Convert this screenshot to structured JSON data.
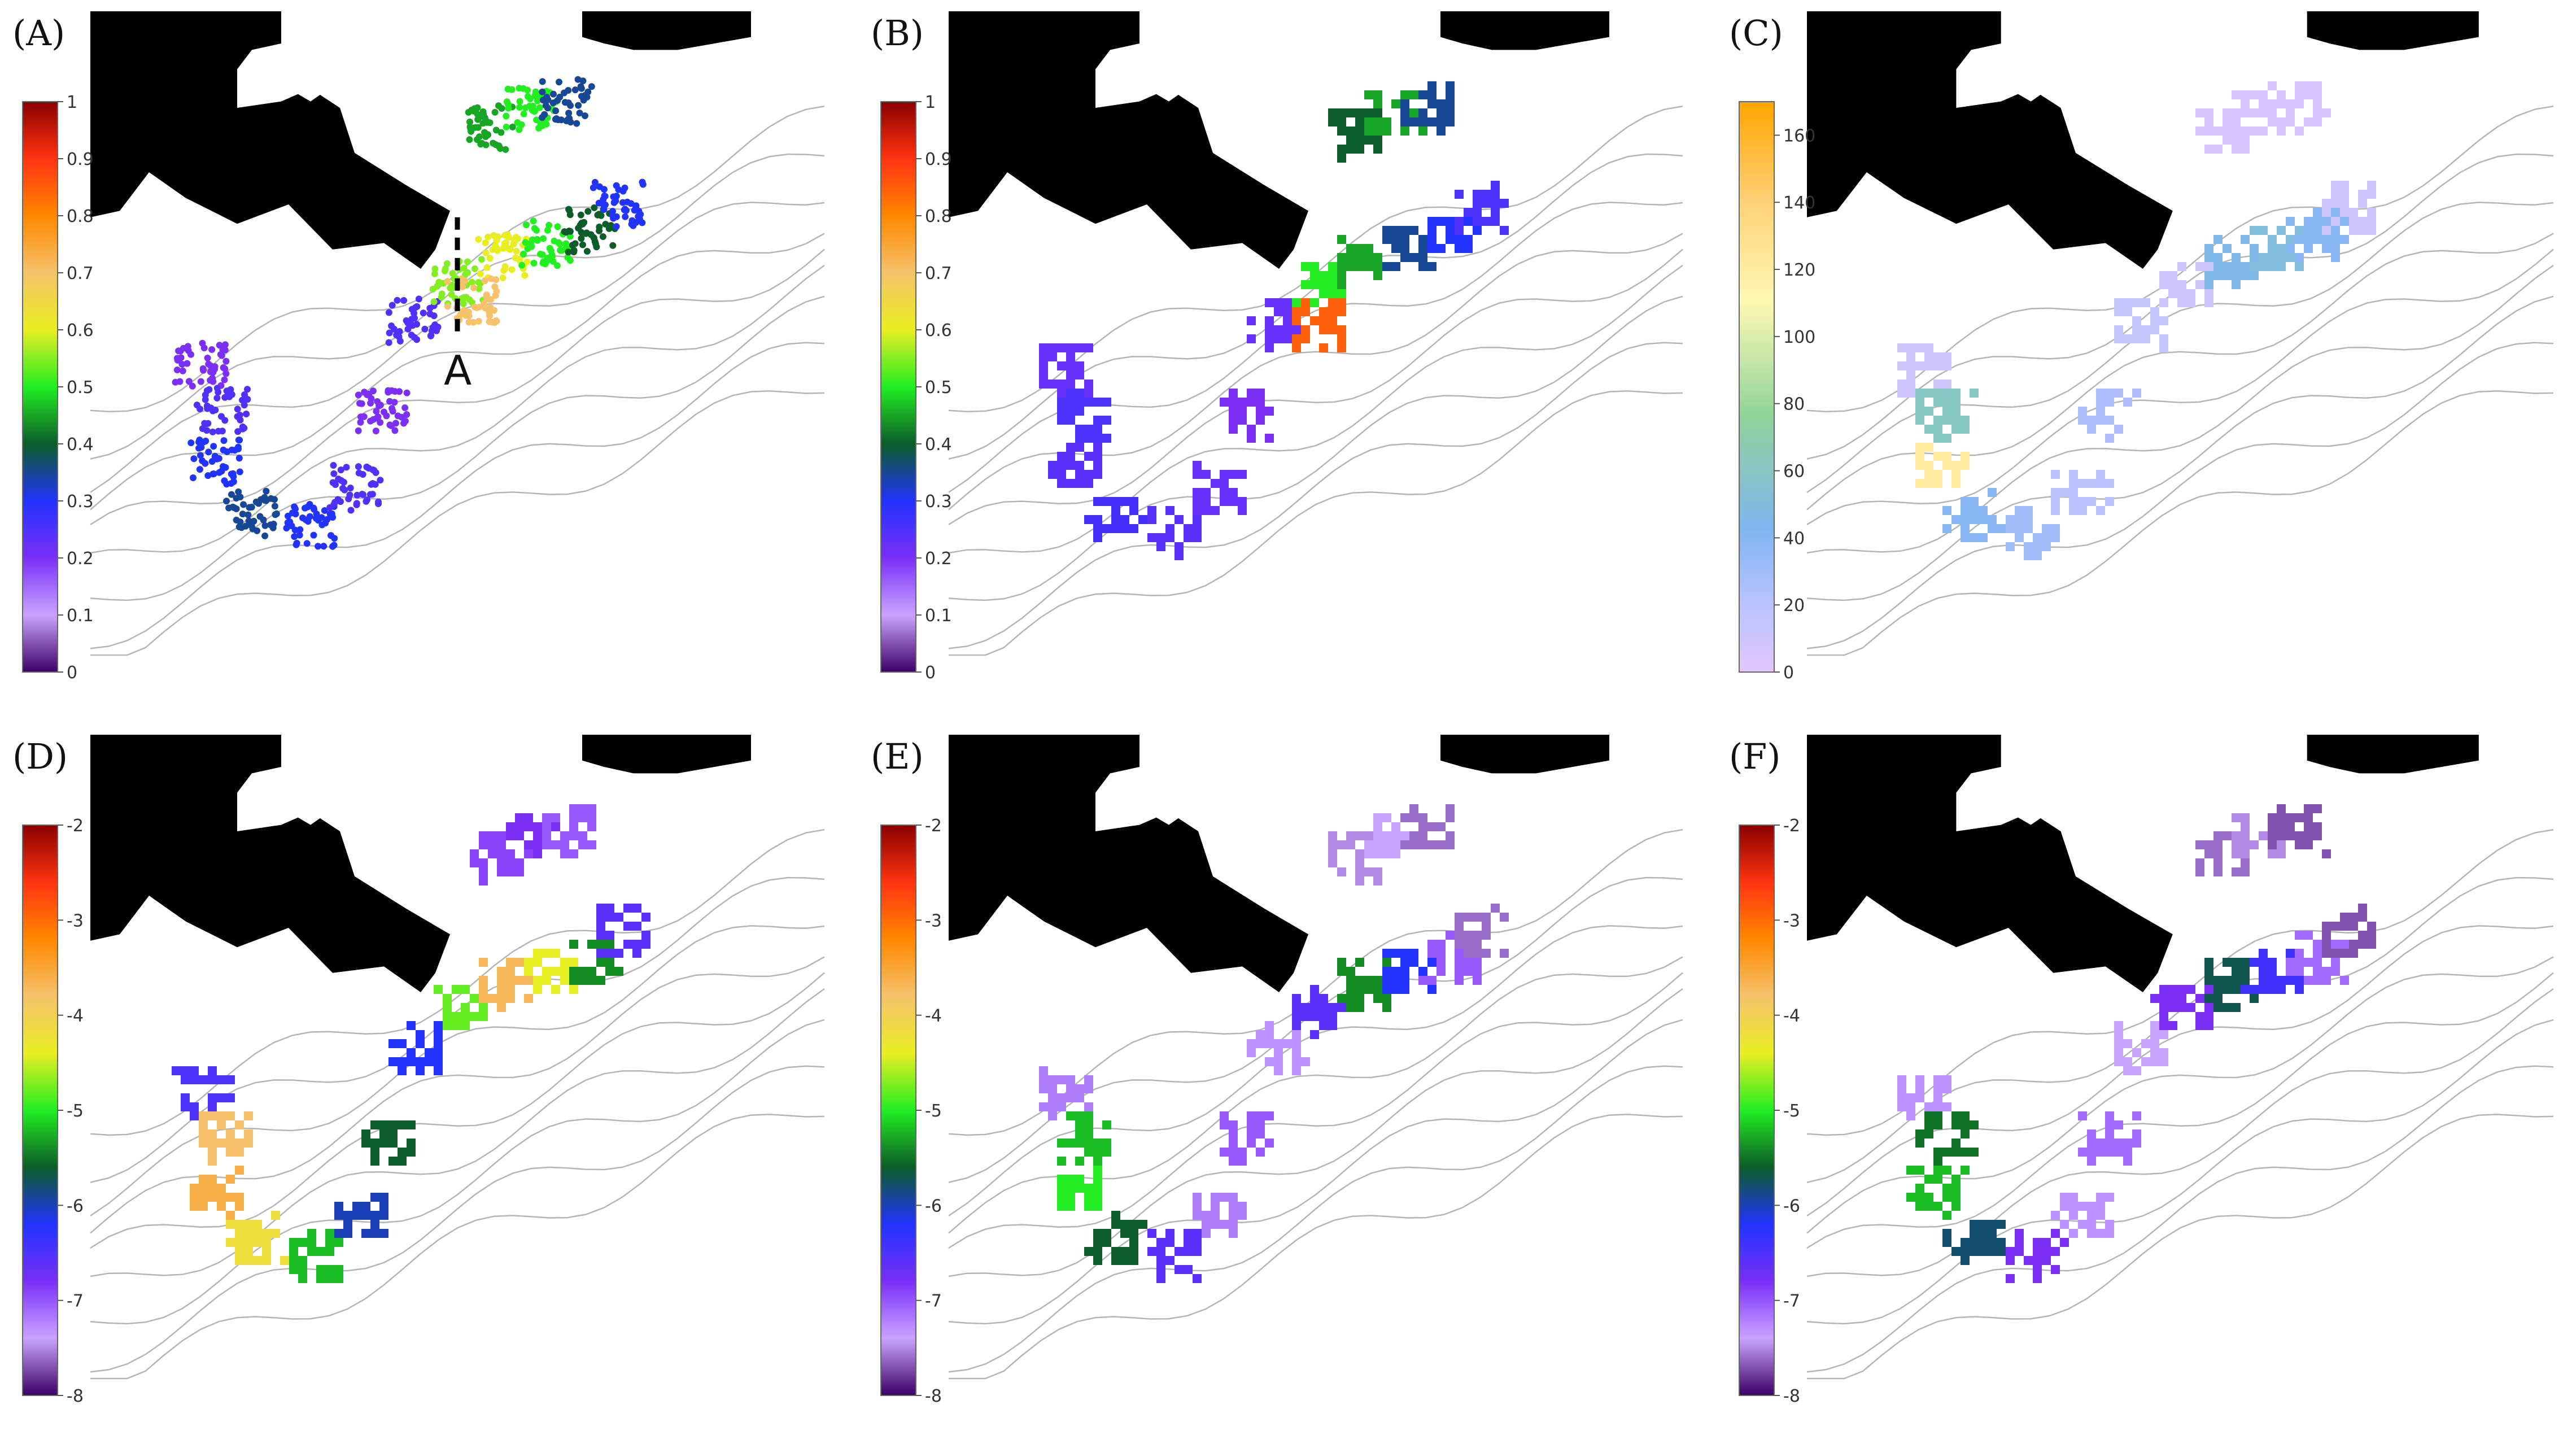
{
  "chart_data": [
    {
      "panel": "(A)",
      "type": "heatmap",
      "title": "",
      "colorbar": {
        "ticks": [
          "0",
          "0.1",
          "0.2",
          "0.3",
          "0.4",
          "0.5",
          "0.6",
          "0.7",
          "0.8",
          "0.9",
          "1"
        ],
        "range": [
          0,
          1
        ],
        "palette": "rainbow"
      },
      "annotation": "A",
      "render": "scatter",
      "cells": [
        {
          "x": 0.15,
          "y": 0.55,
          "v": 0.2
        },
        {
          "x": 0.18,
          "y": 0.62,
          "v": 0.25
        },
        {
          "x": 0.17,
          "y": 0.7,
          "v": 0.3
        },
        {
          "x": 0.22,
          "y": 0.78,
          "v": 0.35
        },
        {
          "x": 0.3,
          "y": 0.8,
          "v": 0.3
        },
        {
          "x": 0.36,
          "y": 0.74,
          "v": 0.25
        },
        {
          "x": 0.4,
          "y": 0.62,
          "v": 0.2
        },
        {
          "x": 0.44,
          "y": 0.48,
          "v": 0.25
        },
        {
          "x": 0.5,
          "y": 0.42,
          "v": 0.55
        },
        {
          "x": 0.56,
          "y": 0.38,
          "v": 0.6
        },
        {
          "x": 0.62,
          "y": 0.36,
          "v": 0.5
        },
        {
          "x": 0.68,
          "y": 0.34,
          "v": 0.4
        },
        {
          "x": 0.72,
          "y": 0.3,
          "v": 0.3
        },
        {
          "x": 0.55,
          "y": 0.18,
          "v": 0.45
        },
        {
          "x": 0.6,
          "y": 0.15,
          "v": 0.5
        },
        {
          "x": 0.65,
          "y": 0.14,
          "v": 0.35
        },
        {
          "x": 0.52,
          "y": 0.45,
          "v": 0.7
        }
      ]
    },
    {
      "panel": "(B)",
      "type": "heatmap",
      "title": "",
      "colorbar": {
        "ticks": [
          "0",
          "0.1",
          "0.2",
          "0.3",
          "0.4",
          "0.5",
          "0.6",
          "0.7",
          "0.8",
          "0.9",
          "1"
        ],
        "range": [
          0,
          1
        ],
        "palette": "rainbow"
      },
      "render": "grid",
      "cells": [
        {
          "x": 0.15,
          "y": 0.55,
          "v": 0.22
        },
        {
          "x": 0.18,
          "y": 0.62,
          "v": 0.25
        },
        {
          "x": 0.17,
          "y": 0.7,
          "v": 0.24
        },
        {
          "x": 0.22,
          "y": 0.78,
          "v": 0.26
        },
        {
          "x": 0.3,
          "y": 0.8,
          "v": 0.24
        },
        {
          "x": 0.36,
          "y": 0.74,
          "v": 0.22
        },
        {
          "x": 0.4,
          "y": 0.62,
          "v": 0.2
        },
        {
          "x": 0.44,
          "y": 0.48,
          "v": 0.22
        },
        {
          "x": 0.5,
          "y": 0.42,
          "v": 0.5
        },
        {
          "x": 0.56,
          "y": 0.38,
          "v": 0.45
        },
        {
          "x": 0.62,
          "y": 0.36,
          "v": 0.35
        },
        {
          "x": 0.68,
          "y": 0.34,
          "v": 0.3
        },
        {
          "x": 0.72,
          "y": 0.3,
          "v": 0.25
        },
        {
          "x": 0.55,
          "y": 0.18,
          "v": 0.4
        },
        {
          "x": 0.6,
          "y": 0.15,
          "v": 0.45
        },
        {
          "x": 0.65,
          "y": 0.14,
          "v": 0.35
        },
        {
          "x": 0.5,
          "y": 0.48,
          "v": 0.85
        }
      ]
    },
    {
      "panel": "(C)",
      "type": "heatmap",
      "title": "",
      "colorbar": {
        "ticks": [
          "0",
          "20",
          "40",
          "60",
          "80",
          "100",
          "120",
          "140",
          "160"
        ],
        "range": [
          0,
          170
        ],
        "palette": "count"
      },
      "render": "grid",
      "cells": [
        {
          "x": 0.15,
          "y": 0.55,
          "v": 10
        },
        {
          "x": 0.18,
          "y": 0.62,
          "v": 60
        },
        {
          "x": 0.17,
          "y": 0.7,
          "v": 120
        },
        {
          "x": 0.22,
          "y": 0.78,
          "v": 40
        },
        {
          "x": 0.3,
          "y": 0.8,
          "v": 30
        },
        {
          "x": 0.36,
          "y": 0.74,
          "v": 20
        },
        {
          "x": 0.4,
          "y": 0.62,
          "v": 25
        },
        {
          "x": 0.44,
          "y": 0.48,
          "v": 15
        },
        {
          "x": 0.5,
          "y": 0.42,
          "v": 10
        },
        {
          "x": 0.56,
          "y": 0.38,
          "v": 45
        },
        {
          "x": 0.62,
          "y": 0.36,
          "v": 50
        },
        {
          "x": 0.68,
          "y": 0.34,
          "v": 40
        },
        {
          "x": 0.72,
          "y": 0.3,
          "v": 10
        },
        {
          "x": 0.55,
          "y": 0.18,
          "v": 5
        },
        {
          "x": 0.6,
          "y": 0.15,
          "v": 5
        },
        {
          "x": 0.65,
          "y": 0.14,
          "v": 5
        }
      ]
    },
    {
      "panel": "(D)",
      "type": "heatmap",
      "title": "",
      "colorbar": {
        "ticks": [
          "-8",
          "-7",
          "-6",
          "-5",
          "-4",
          "-3",
          "-2"
        ],
        "range": [
          -8,
          -2
        ],
        "palette": "rainbow"
      },
      "render": "grid",
      "cells": [
        {
          "x": 0.15,
          "y": 0.55,
          "v": -6.5
        },
        {
          "x": 0.18,
          "y": 0.62,
          "v": -3.8
        },
        {
          "x": 0.17,
          "y": 0.7,
          "v": -3.6
        },
        {
          "x": 0.22,
          "y": 0.78,
          "v": -4.2
        },
        {
          "x": 0.3,
          "y": 0.8,
          "v": -5.2
        },
        {
          "x": 0.36,
          "y": 0.74,
          "v": -6.0
        },
        {
          "x": 0.4,
          "y": 0.62,
          "v": -5.6
        },
        {
          "x": 0.44,
          "y": 0.48,
          "v": -6.2
        },
        {
          "x": 0.5,
          "y": 0.42,
          "v": -4.8
        },
        {
          "x": 0.56,
          "y": 0.38,
          "v": -3.7
        },
        {
          "x": 0.62,
          "y": 0.36,
          "v": -4.4
        },
        {
          "x": 0.68,
          "y": 0.34,
          "v": -5.4
        },
        {
          "x": 0.72,
          "y": 0.3,
          "v": -6.6
        },
        {
          "x": 0.55,
          "y": 0.18,
          "v": -6.9
        },
        {
          "x": 0.6,
          "y": 0.15,
          "v": -6.8
        },
        {
          "x": 0.65,
          "y": 0.14,
          "v": -7.0
        }
      ]
    },
    {
      "panel": "(E)",
      "type": "heatmap",
      "title": "",
      "colorbar": {
        "ticks": [
          "-8",
          "-7",
          "-6",
          "-5",
          "-4",
          "-3",
          "-2"
        ],
        "range": [
          -8,
          -2
        ],
        "palette": "rainbow"
      },
      "render": "grid",
      "cells": [
        {
          "x": 0.15,
          "y": 0.55,
          "v": -7.2
        },
        {
          "x": 0.18,
          "y": 0.62,
          "v": -5.2
        },
        {
          "x": 0.17,
          "y": 0.7,
          "v": -5.0
        },
        {
          "x": 0.22,
          "y": 0.78,
          "v": -5.6
        },
        {
          "x": 0.3,
          "y": 0.8,
          "v": -6.6
        },
        {
          "x": 0.36,
          "y": 0.74,
          "v": -7.2
        },
        {
          "x": 0.4,
          "y": 0.62,
          "v": -7.0
        },
        {
          "x": 0.44,
          "y": 0.48,
          "v": -7.3
        },
        {
          "x": 0.5,
          "y": 0.42,
          "v": -6.6
        },
        {
          "x": 0.56,
          "y": 0.38,
          "v": -5.4
        },
        {
          "x": 0.62,
          "y": 0.36,
          "v": -6.2
        },
        {
          "x": 0.68,
          "y": 0.34,
          "v": -7.0
        },
        {
          "x": 0.72,
          "y": 0.3,
          "v": -7.6
        },
        {
          "x": 0.55,
          "y": 0.18,
          "v": -7.5
        },
        {
          "x": 0.6,
          "y": 0.15,
          "v": -7.4
        },
        {
          "x": 0.65,
          "y": 0.14,
          "v": -7.6
        }
      ]
    },
    {
      "panel": "(F)",
      "type": "heatmap",
      "title": "",
      "colorbar": {
        "ticks": [
          "-8",
          "-7",
          "-6",
          "-5",
          "-4",
          "-3",
          "-2"
        ],
        "range": [
          -8,
          -2
        ],
        "palette": "rainbow"
      },
      "render": "grid",
      "cells": [
        {
          "x": 0.15,
          "y": 0.55,
          "v": -7.3
        },
        {
          "x": 0.18,
          "y": 0.62,
          "v": -5.5
        },
        {
          "x": 0.17,
          "y": 0.7,
          "v": -5.2
        },
        {
          "x": 0.22,
          "y": 0.78,
          "v": -5.8
        },
        {
          "x": 0.3,
          "y": 0.8,
          "v": -6.8
        },
        {
          "x": 0.36,
          "y": 0.74,
          "v": -7.3
        },
        {
          "x": 0.4,
          "y": 0.62,
          "v": -7.1
        },
        {
          "x": 0.44,
          "y": 0.48,
          "v": -7.4
        },
        {
          "x": 0.5,
          "y": 0.42,
          "v": -6.8
        },
        {
          "x": 0.56,
          "y": 0.38,
          "v": -5.7
        },
        {
          "x": 0.62,
          "y": 0.36,
          "v": -6.4
        },
        {
          "x": 0.68,
          "y": 0.34,
          "v": -7.1
        },
        {
          "x": 0.72,
          "y": 0.3,
          "v": -7.7
        },
        {
          "x": 0.55,
          "y": 0.18,
          "v": -7.6
        },
        {
          "x": 0.6,
          "y": 0.15,
          "v": -7.5
        },
        {
          "x": 0.65,
          "y": 0.14,
          "v": -7.7
        }
      ]
    }
  ]
}
